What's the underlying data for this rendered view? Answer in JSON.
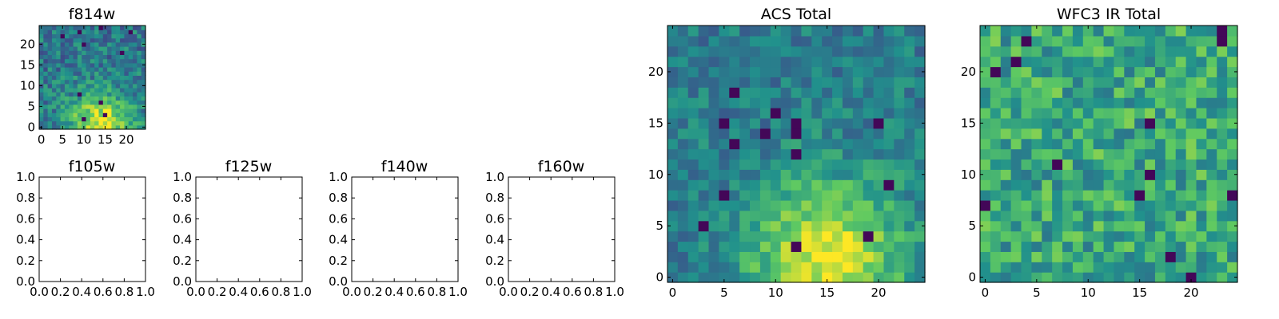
{
  "figure": {
    "background": "#ffffff",
    "colormap": [
      "#440154",
      "#3b528b",
      "#21918c",
      "#5ec962",
      "#fde725"
    ]
  },
  "chart_data": [
    {
      "id": "f814w",
      "type": "heatmap",
      "title": "f814w",
      "xlim": [
        -0.5,
        24.5
      ],
      "ylim": [
        -0.5,
        24.5
      ],
      "xticks": [
        "0",
        "5",
        "10",
        "15",
        "20"
      ],
      "yticks": [
        "0",
        "5",
        "10",
        "15",
        "20"
      ],
      "values": "25x25 noisy image; brightest around x≈14, y≈1, falling off to a noisy background (≈0.3–0.5) with a few dark pixels"
    },
    {
      "id": "f105w",
      "type": "heatmap",
      "title": "f105w",
      "xlim": [
        0.0,
        1.0
      ],
      "ylim": [
        0.0,
        1.0
      ],
      "xticks": [
        "0.0",
        "0.2",
        "0.4",
        "0.6",
        "0.8",
        "1.0"
      ],
      "yticks": [
        "0.0",
        "0.2",
        "0.4",
        "0.6",
        "0.8",
        "1.0"
      ]
    },
    {
      "id": "f125w",
      "type": "heatmap",
      "title": "f125w",
      "xlim": [
        0.0,
        1.0
      ],
      "ylim": [
        0.0,
        1.0
      ],
      "xticks": [
        "0.0",
        "0.2",
        "0.4",
        "0.6",
        "0.8",
        "1.0"
      ],
      "yticks": [
        "0.0",
        "0.2",
        "0.4",
        "0.6",
        "0.8",
        "1.0"
      ]
    },
    {
      "id": "f140w",
      "type": "heatmap",
      "title": "f140w",
      "xlim": [
        0.0,
        1.0
      ],
      "ylim": [
        0.0,
        1.0
      ],
      "xticks": [
        "0.0",
        "0.2",
        "0.4",
        "0.6",
        "0.8",
        "1.0"
      ],
      "yticks": [
        "0.0",
        "0.2",
        "0.4",
        "0.6",
        "0.8",
        "1.0"
      ]
    },
    {
      "id": "f160w",
      "type": "heatmap",
      "title": "f160w",
      "xlim": [
        0.0,
        1.0
      ],
      "ylim": [
        0.0,
        1.0
      ],
      "xticks": [
        "0.0",
        "0.2",
        "0.4",
        "0.6",
        "0.8",
        "1.0"
      ],
      "yticks": [
        "0.0",
        "0.2",
        "0.4",
        "0.6",
        "0.8",
        "1.0"
      ]
    },
    {
      "id": "acs",
      "type": "heatmap",
      "title": "ACS Total",
      "xlim": [
        -0.5,
        24.5
      ],
      "ylim": [
        -0.5,
        24.5
      ],
      "xticks": [
        "0",
        "5",
        "10",
        "15",
        "20"
      ],
      "yticks": [
        "0",
        "5",
        "10",
        "15",
        "20"
      ],
      "values": "25x25 noisy image; brightest around x≈15, y≈2, falling off to a noisy background (≈0.35–0.5) with a few dark pixels"
    },
    {
      "id": "wfc3",
      "type": "heatmap",
      "title": "WFC3 IR Total",
      "xlim": [
        -0.5,
        24.5
      ],
      "ylim": [
        -0.5,
        24.5
      ],
      "xticks": [
        "0",
        "5",
        "10",
        "15",
        "20"
      ],
      "yticks": [
        "0",
        "5",
        "10",
        "15",
        "20"
      ],
      "values": "25x25 noisy image of roughly uniform brightness (≈0.55–0.65) with a few dark pixels"
    }
  ]
}
